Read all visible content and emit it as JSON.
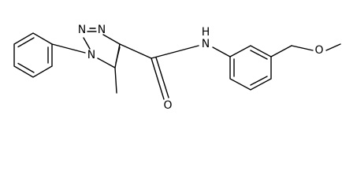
{
  "atoms": [
    {
      "label": "N"
    },
    {
      "label": "N"
    },
    {
      "label": "N"
    },
    {
      "label": "O"
    },
    {
      "label": "N"
    },
    {
      "label": "H"
    },
    {
      "label": "O"
    }
  ]
}
